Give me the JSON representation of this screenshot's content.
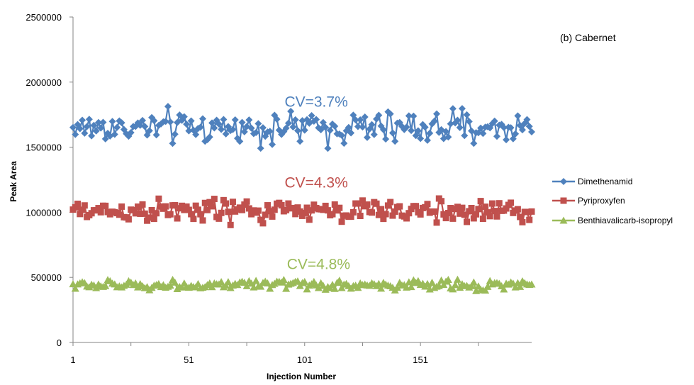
{
  "colors": {
    "dimethenamid": "#4f81bd",
    "pyriproxyfen": "#c0504d",
    "benthiavalicarb": "#9bbb59",
    "axis": "#868686"
  },
  "chart_data": {
    "type": "line",
    "panel_label": "(b) Cabernet",
    "xlabel": "Injection Number",
    "ylabel": "Peak Area",
    "x_ticks": [
      "1",
      "51",
      "101",
      "151"
    ],
    "y_ticks": [
      "0",
      "500000",
      "1000000",
      "1500000",
      "2000000",
      "2500000"
    ],
    "ylim": [
      0,
      2500000
    ],
    "xlim": [
      1,
      199
    ],
    "grid": false,
    "legend_position": "right",
    "n_points": 199,
    "series": [
      {
        "name": "Dimethenamid",
        "marker": "diamond",
        "color": "#4f81bd",
        "mean": 1650000,
        "amplitude": 70000,
        "cv_label": "CV=3.7%",
        "label_at": [
          106,
          1810000
        ]
      },
      {
        "name": "Pyriproxyfen",
        "marker": "square",
        "color": "#c0504d",
        "mean": 1010000,
        "amplitude": 50000,
        "cv_label": "CV=4.3%",
        "label_at": [
          106,
          1190000
        ]
      },
      {
        "name": "Benthiavalicarb-isopropyl",
        "marker": "triangle",
        "color": "#9bbb59",
        "mean": 440000,
        "amplitude": 22000,
        "cv_label": "CV=4.8%",
        "label_at": [
          107,
          565000
        ]
      }
    ]
  }
}
